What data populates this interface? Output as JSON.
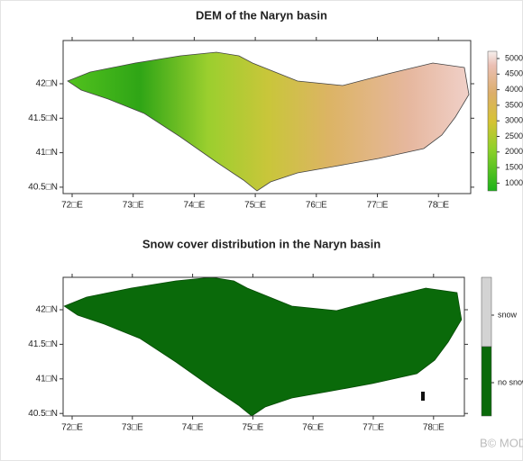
{
  "panels": [
    {
      "title": "DEM of the Naryn basin",
      "x_ticks": [
        "72□E",
        "73□E",
        "74□E",
        "75□E",
        "76□E",
        "77□E",
        "78□E"
      ],
      "y_ticks": [
        "42□N",
        "41.5□N",
        "41□N",
        "40.5□N"
      ],
      "legend": [
        "5000",
        "4500",
        "4000",
        "3500",
        "3000",
        "2500",
        "2000",
        "1500",
        "1000"
      ]
    },
    {
      "title": "Snow cover distribution in the Naryn basin",
      "x_ticks": [
        "72□E",
        "73□E",
        "74□E",
        "75□E",
        "76□E",
        "77□E",
        "78□E"
      ],
      "y_ticks": [
        "42□N",
        "41.5□N",
        "41□N",
        "40.5□N"
      ],
      "legend": [
        "snow",
        "no snow"
      ]
    }
  ],
  "watermark": "B© MODSNOW"
}
